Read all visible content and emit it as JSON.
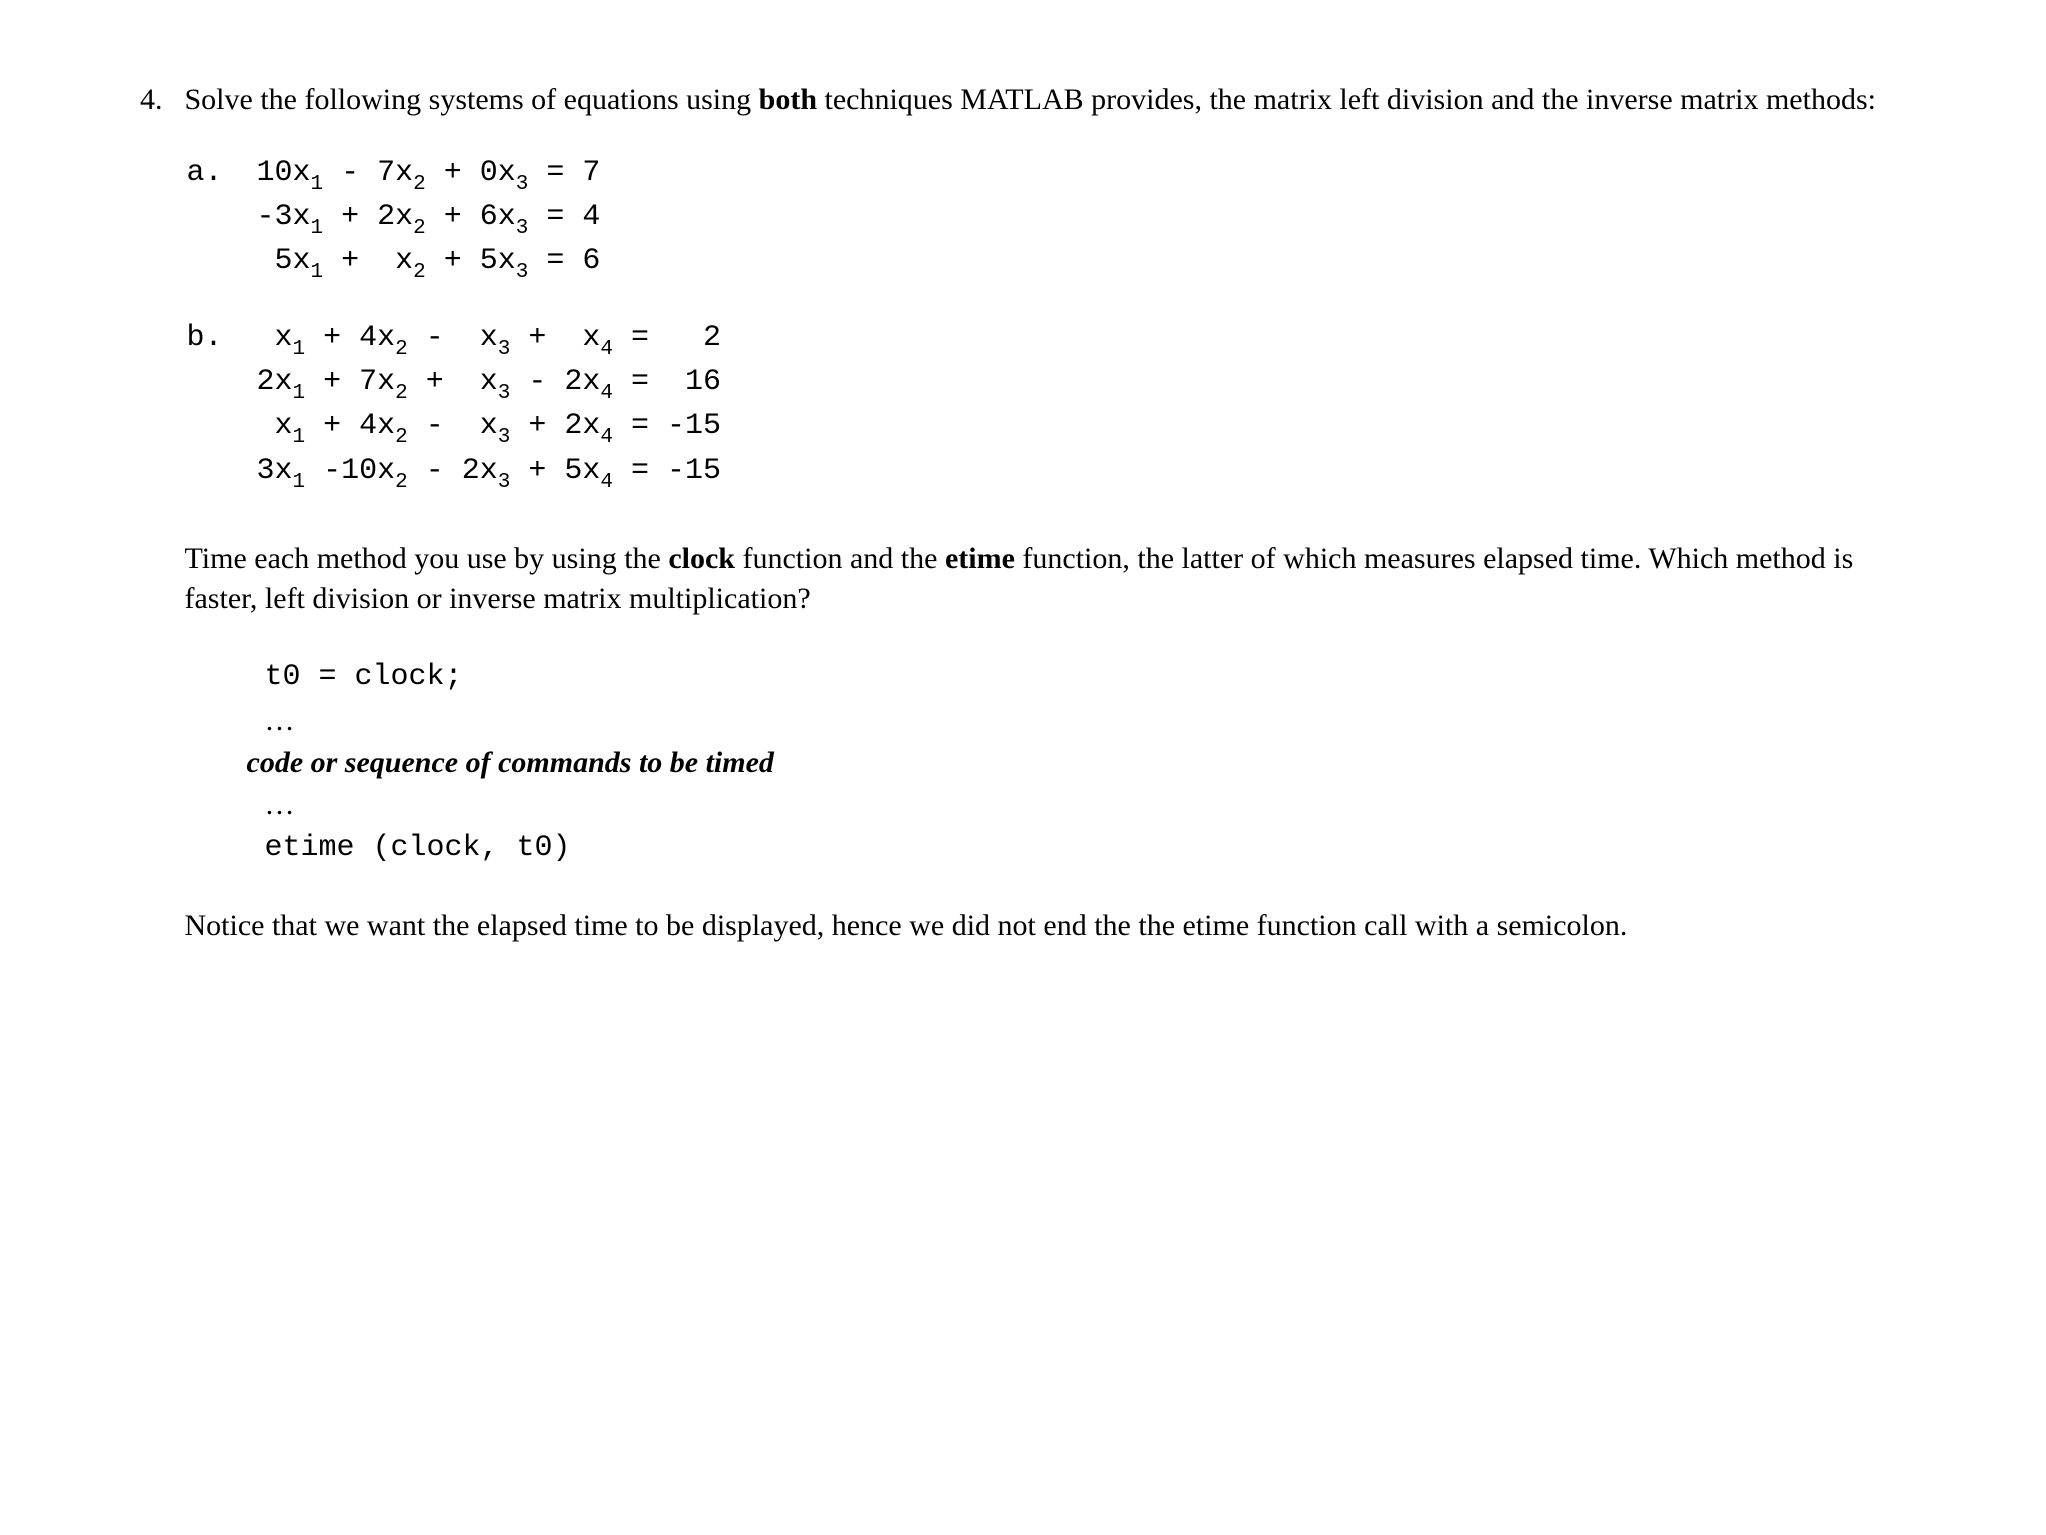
{
  "document": {
    "background_color": "#ffffff",
    "text_color": "#000000",
    "body_font": "Times New Roman",
    "mono_font": "Courier New",
    "base_fontsize_pt": 22
  },
  "problem": {
    "number": "4.",
    "intro_pre": "Solve the following systems of equations using ",
    "intro_bold1": "both",
    "intro_post": " techniques MATLAB provides, the matrix left division and the inverse matrix methods:"
  },
  "system_a": {
    "label": "a.",
    "equations": [
      {
        "coeffs": [
          10,
          -7,
          0
        ],
        "rhs": 7,
        "line": "10x₁ - 7x₂ + 0x₃ = 7"
      },
      {
        "coeffs": [
          -3,
          2,
          6
        ],
        "rhs": 4,
        "line": "-3x₁ + 2x₂ + 6x₃ = 4"
      },
      {
        "coeffs": [
          5,
          1,
          5
        ],
        "rhs": 6,
        "line": " 5x₁ +  x₂ + 5x₃ = 6"
      }
    ]
  },
  "system_b": {
    "label": "b.",
    "equations": [
      {
        "coeffs": [
          1,
          4,
          -1,
          1
        ],
        "rhs": 2,
        "line": " x₁ + 4x₂ -  x₃ +  x₄ =   2"
      },
      {
        "coeffs": [
          2,
          7,
          1,
          -2
        ],
        "rhs": 16,
        "line": "2x₁ + 7x₂ +  x₃ - 2x₄ =  16"
      },
      {
        "coeffs": [
          1,
          4,
          -1,
          2
        ],
        "rhs": -15,
        "line": " x₁ + 4x₂ -  x₃ + 2x₄ = -15"
      },
      {
        "coeffs": [
          3,
          -10,
          -2,
          5
        ],
        "rhs": -15,
        "line": "3x₁ -10x₂ - 2x₃ + 5x₄ = -15"
      }
    ]
  },
  "timing": {
    "pre": "Time each method you use by using the ",
    "bold1": "clock",
    "mid1": " function and the ",
    "bold2": "etime",
    "post": " function, the latter of which measures elapsed time.  Which method is faster, left division or inverse matrix multiplication?"
  },
  "code": {
    "line1": "t0 = clock;",
    "dots1": "…",
    "comment": "code or sequence of commands to be timed",
    "dots2": "…",
    "line2": "etime (clock, t0)"
  },
  "final": {
    "text": "Notice that we want the elapsed time to be displayed, hence we did not end the the etime function call with a semicolon."
  }
}
